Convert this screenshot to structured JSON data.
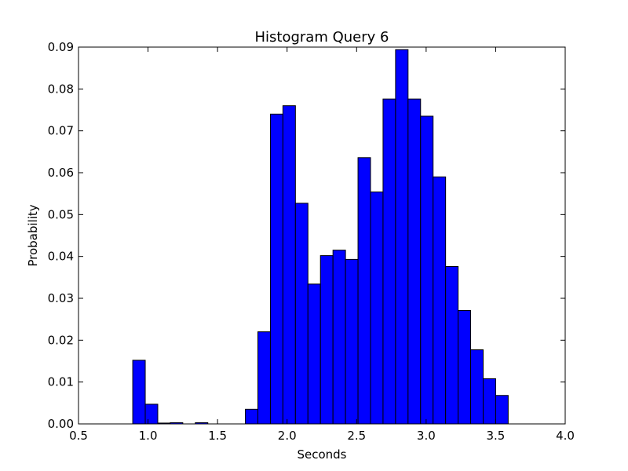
{
  "chart_data": {
    "type": "bar",
    "title": "Histogram Query 6",
    "xlabel": "Seconds",
    "ylabel": "Probability",
    "xlim": [
      0.5,
      4.0
    ],
    "ylim": [
      0.0,
      0.09
    ],
    "xticks": [
      "0.5",
      "1.0",
      "1.5",
      "2.0",
      "2.5",
      "3.0",
      "3.5",
      "4.0"
    ],
    "yticks": [
      "0.00",
      "0.01",
      "0.02",
      "0.03",
      "0.04",
      "0.05",
      "0.06",
      "0.07",
      "0.08",
      "0.09"
    ],
    "bin_width": 0.09,
    "bin_starts": [
      0.89,
      0.98,
      1.07,
      1.16,
      1.25,
      1.34,
      1.43,
      1.52,
      1.61,
      1.7,
      1.79,
      1.88,
      1.97,
      2.06,
      2.15,
      2.24,
      2.33,
      2.42,
      2.51,
      2.6,
      2.69,
      2.78,
      2.87,
      2.96,
      3.05,
      3.14,
      3.23,
      3.32,
      3.41,
      3.5
    ],
    "values": [
      0.0152,
      0.0047,
      0.0002,
      0.0003,
      0.0,
      0.0003,
      0.0,
      0.0,
      0.0,
      0.0035,
      0.022,
      0.074,
      0.076,
      0.0527,
      0.0334,
      0.0402,
      0.0415,
      0.0393,
      0.0636,
      0.0554,
      0.0776,
      0.0894,
      0.0776,
      0.0735,
      0.059,
      0.0376,
      0.0271,
      0.0177,
      0.0108,
      0.0068
    ],
    "bar_color": "#0000ff",
    "edge_color": "#000000",
    "grid": false,
    "legend": "none"
  }
}
